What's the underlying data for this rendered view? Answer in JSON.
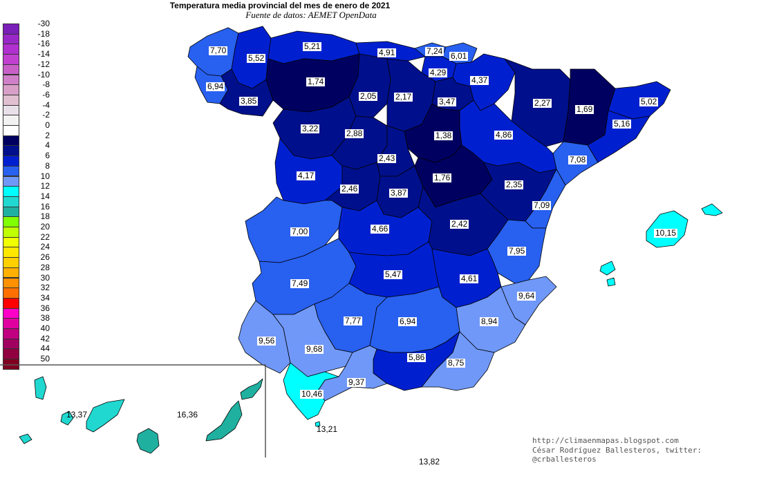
{
  "title": "Temperatura media provincial del mes de enero de 2021",
  "subtitle": "Fuente de datos: AEMET OpenData",
  "legend": [
    {
      "label": "-30",
      "color": "#7a1fb8"
    },
    {
      "label": "-18",
      "color": "#9a28c8"
    },
    {
      "label": "-16",
      "color": "#b030d0"
    },
    {
      "label": "-14",
      "color": "#c040d0"
    },
    {
      "label": "-12",
      "color": "#c860c8"
    },
    {
      "label": "-10",
      "color": "#d080c8"
    },
    {
      "label": "-8",
      "color": "#d8a0c8"
    },
    {
      "label": "-6",
      "color": "#e0c0d0"
    },
    {
      "label": "-4",
      "color": "#e8e0e8"
    },
    {
      "label": "-2",
      "color": "#f2f2f2"
    },
    {
      "label": "0",
      "color": "#ffffff"
    },
    {
      "label": "2",
      "color": "#000060"
    },
    {
      "label": "4",
      "color": "#00108c"
    },
    {
      "label": "6",
      "color": "#0020d0"
    },
    {
      "label": "8",
      "color": "#2860f0"
    },
    {
      "label": "10",
      "color": "#7098f8"
    },
    {
      "label": "12",
      "color": "#00ffff"
    },
    {
      "label": "14",
      "color": "#20d8d0"
    },
    {
      "label": "16",
      "color": "#20b0a0"
    },
    {
      "label": "18",
      "color": "#80ff00"
    },
    {
      "label": "20",
      "color": "#c0ff00"
    },
    {
      "label": "22",
      "color": "#f0ff00"
    },
    {
      "label": "24",
      "color": "#ffe800"
    },
    {
      "label": "26",
      "color": "#ffd000"
    },
    {
      "label": "28",
      "color": "#ffb000"
    },
    {
      "label": "30",
      "color": "#ff9000"
    },
    {
      "label": "32",
      "color": "#ff7000"
    },
    {
      "label": "34",
      "color": "#ff0000"
    },
    {
      "label": "36",
      "color": "#ff00c8"
    },
    {
      "label": "38",
      "color": "#e000a0"
    },
    {
      "label": "40",
      "color": "#c00080"
    },
    {
      "label": "42",
      "color": "#a00060"
    },
    {
      "label": "44",
      "color": "#900040"
    },
    {
      "label": "50",
      "color": "#800020"
    }
  ],
  "provinces": [
    {
      "name": "A Coruña",
      "value": "7,70",
      "color": "#2860f0"
    },
    {
      "name": "Lugo",
      "value": "5,52",
      "color": "#0020d0"
    },
    {
      "name": "Asturias",
      "value": "5,21",
      "color": "#0020d0"
    },
    {
      "name": "Cantabria",
      "value": "4,91",
      "color": "#0020d0"
    },
    {
      "name": "Bizkaia",
      "value": "7,24",
      "color": "#2860f0"
    },
    {
      "name": "Gipuzkoa",
      "value": "6,01",
      "color": "#2860f0"
    },
    {
      "name": "Araba",
      "value": "4,29",
      "color": "#0020d0"
    },
    {
      "name": "Navarra",
      "value": "4,37",
      "color": "#0020d0"
    },
    {
      "name": "Pontevedra",
      "value": "6,94",
      "color": "#2860f0"
    },
    {
      "name": "Ourense",
      "value": "3,85",
      "color": "#00108c"
    },
    {
      "name": "León",
      "value": "1,74",
      "color": "#000060"
    },
    {
      "name": "Palencia",
      "value": "2,05",
      "color": "#00108c"
    },
    {
      "name": "Burgos",
      "value": "2,17",
      "color": "#00108c"
    },
    {
      "name": "La Rioja",
      "value": "3,47",
      "color": "#00108c"
    },
    {
      "name": "Huesca",
      "value": "2,27",
      "color": "#00108c"
    },
    {
      "name": "Lleida",
      "value": "1,69",
      "color": "#000060"
    },
    {
      "name": "Girona",
      "value": "5,02",
      "color": "#0020d0"
    },
    {
      "name": "Barcelona",
      "value": "5,16",
      "color": "#0020d0"
    },
    {
      "name": "Zamora",
      "value": "3,22",
      "color": "#00108c"
    },
    {
      "name": "Valladolid",
      "value": "2,88",
      "color": "#00108c"
    },
    {
      "name": "Soria",
      "value": "1,38",
      "color": "#000060"
    },
    {
      "name": "Zaragoza",
      "value": "4,86",
      "color": "#0020d0"
    },
    {
      "name": "Tarragona",
      "value": "7,08",
      "color": "#2860f0"
    },
    {
      "name": "Salamanca",
      "value": "4,17",
      "color": "#0020d0"
    },
    {
      "name": "Segovia",
      "value": "2,43",
      "color": "#00108c"
    },
    {
      "name": "Ávila",
      "value": "2,46",
      "color": "#00108c"
    },
    {
      "name": "Madrid",
      "value": "3,87",
      "color": "#00108c"
    },
    {
      "name": "Guadalajara",
      "value": "1,76",
      "color": "#000060"
    },
    {
      "name": "Teruel",
      "value": "2,35",
      "color": "#00108c"
    },
    {
      "name": "Castellón",
      "value": "7,09",
      "color": "#2860f0"
    },
    {
      "name": "Cáceres",
      "value": "7,00",
      "color": "#2860f0"
    },
    {
      "name": "Toledo",
      "value": "4,66",
      "color": "#0020d0"
    },
    {
      "name": "Cuenca",
      "value": "2,42",
      "color": "#00108c"
    },
    {
      "name": "Valencia",
      "value": "7,95",
      "color": "#2860f0"
    },
    {
      "name": "Badajoz",
      "value": "7,49",
      "color": "#2860f0"
    },
    {
      "name": "Ciudad Real",
      "value": "5,47",
      "color": "#0020d0"
    },
    {
      "name": "Albacete",
      "value": "4,61",
      "color": "#0020d0"
    },
    {
      "name": "Alicante",
      "value": "9,64",
      "color": "#7098f8"
    },
    {
      "name": "Córdoba",
      "value": "7,77",
      "color": "#2860f0"
    },
    {
      "name": "Jaén",
      "value": "6,94",
      "color": "#2860f0"
    },
    {
      "name": "Murcia",
      "value": "8,94",
      "color": "#7098f8"
    },
    {
      "name": "Huelva",
      "value": "9,56",
      "color": "#7098f8"
    },
    {
      "name": "Sevilla",
      "value": "9,68",
      "color": "#7098f8"
    },
    {
      "name": "Granada",
      "value": "5,86",
      "color": "#0020d0"
    },
    {
      "name": "Almería",
      "value": "8,75",
      "color": "#7098f8"
    },
    {
      "name": "Málaga",
      "value": "9,37",
      "color": "#7098f8"
    },
    {
      "name": "Cádiz",
      "value": "10,46",
      "color": "#00ffff"
    },
    {
      "name": "Illes Balears",
      "value": "10,15",
      "color": "#00ffff"
    },
    {
      "name": "Ceuta",
      "value": "13,21",
      "color": "#00ffff"
    },
    {
      "name": "Santa Cruz de Tenerife",
      "value": "13,37",
      "color": "#20d8d0"
    },
    {
      "name": "Las Palmas",
      "value": "16,36",
      "color": "#20b0a0"
    },
    {
      "name": "Melilla",
      "value": "13,82",
      "color": "#20d8d0"
    }
  ],
  "credits": {
    "line1": "http://climaenmapas.blogspot.com",
    "line2": "César Rodríguez Ballesteros, twitter: @crballesteros"
  }
}
